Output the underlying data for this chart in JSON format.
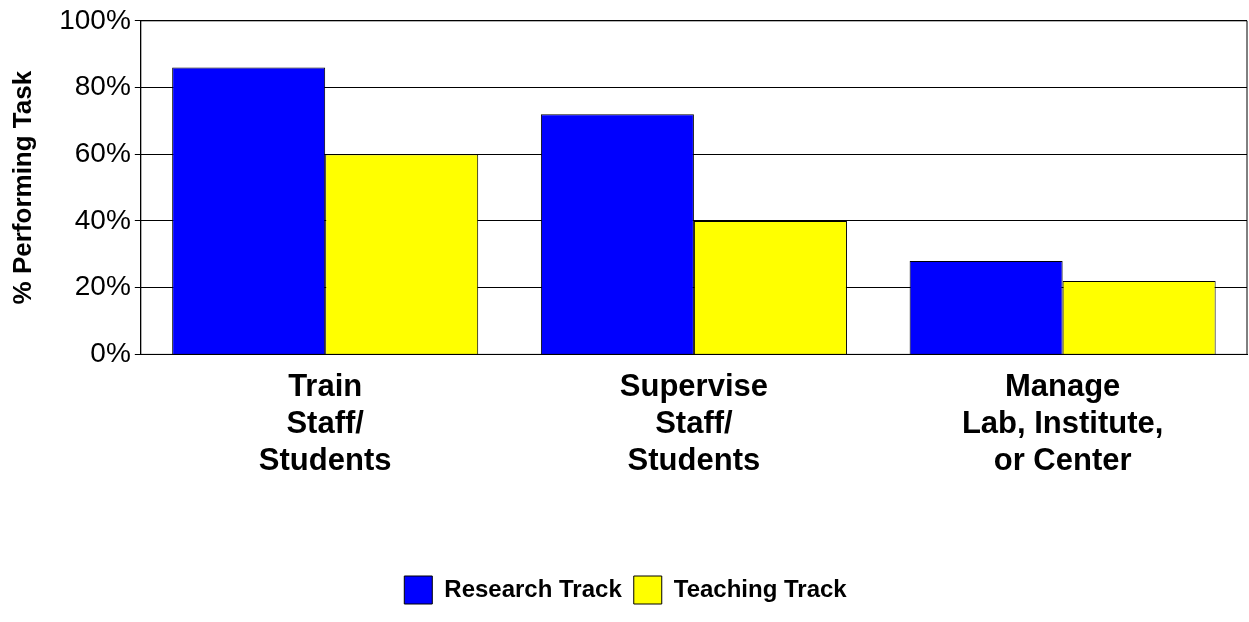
{
  "chart_data": {
    "type": "bar",
    "ylabel": "% Performing Task",
    "categories": [
      "Train\nStaff/\nStudents",
      "Supervise\nStaff/\nStudents",
      "Manage\nLab, Institute,\nor Center"
    ],
    "series": [
      {
        "name": "Research Track",
        "color": "#0000ff",
        "values": [
          86,
          72,
          28
        ]
      },
      {
        "name": "Teaching Track",
        "color": "#ffff00",
        "values": [
          60,
          40,
          22
        ]
      }
    ],
    "ylim": [
      0,
      100
    ],
    "yticks": [
      {
        "value": 0,
        "label": "0%"
      },
      {
        "value": 20,
        "label": "20%"
      },
      {
        "value": 40,
        "label": "40%"
      },
      {
        "value": 60,
        "label": "60%"
      },
      {
        "value": 80,
        "label": "80%"
      },
      {
        "value": 100,
        "label": "100%"
      }
    ],
    "grid": "y",
    "legend": "bottom"
  }
}
